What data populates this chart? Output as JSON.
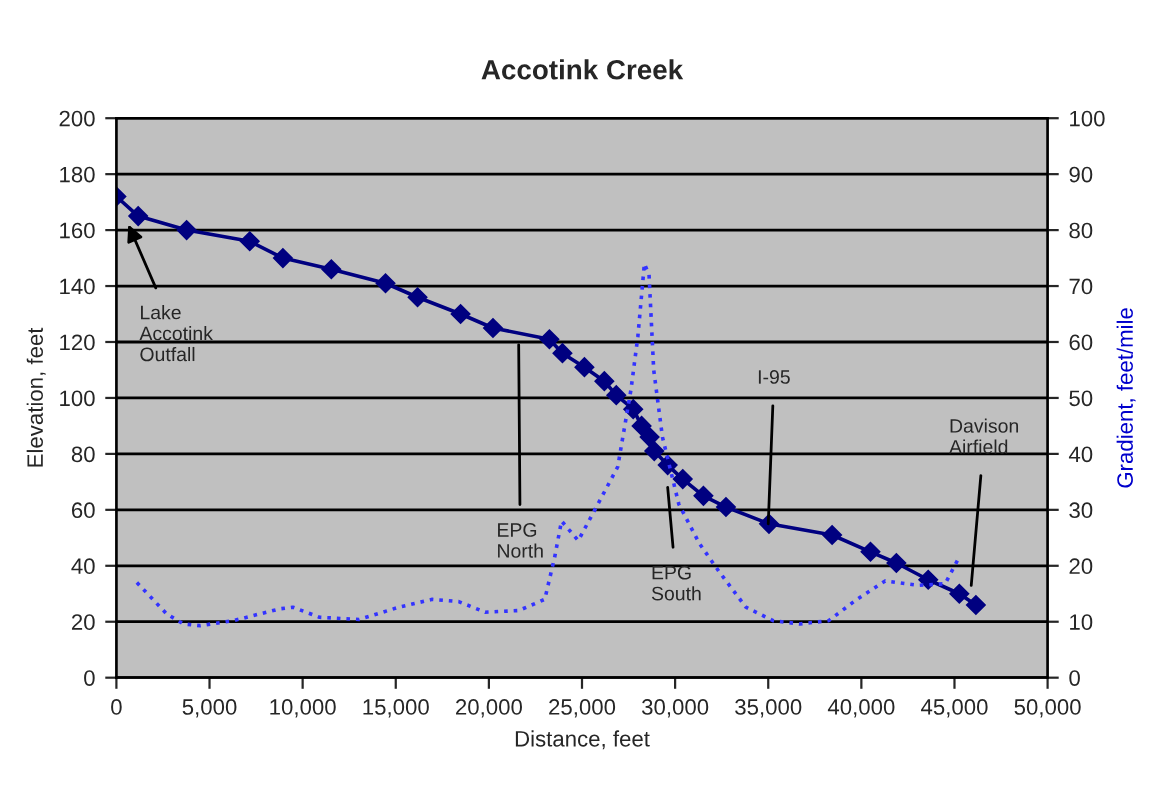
{
  "chart_data": {
    "type": "line",
    "title": "Accotink Creek",
    "xlabel": "Distance, feet",
    "ylabel": "Elevation, feet",
    "y2label": "Gradient, feet/mile",
    "series": [
      {
        "color": "#000080",
        "marker": "diamond",
        "line_style": "solid",
        "x": [
          0,
          1170,
          3770,
          7160,
          8940,
          11540,
          14450,
          16170,
          18480,
          20220,
          23250,
          23950,
          25130,
          26200,
          26840,
          27750,
          28200,
          28630,
          28880,
          29600,
          30410,
          31520,
          32730,
          35040,
          38430,
          40490,
          41880,
          43590,
          45260,
          46150
        ],
        "values": [
          172,
          165,
          160,
          156,
          150,
          146,
          141,
          136,
          130,
          125,
          121,
          116,
          111,
          106,
          101,
          96,
          90,
          86,
          81,
          76,
          71,
          65,
          61,
          55,
          51,
          45,
          41,
          35,
          30,
          26
        ]
      },
      {
        "color": "#3333ff",
        "marker": "none",
        "line_style": "dotted",
        "axis": "y2",
        "x": [
          1100,
          2700,
          3600,
          4500,
          6290,
          8760,
          9470,
          10900,
          13030,
          15170,
          16960,
          18380,
          19800,
          21600,
          23000,
          23530,
          23900,
          24800,
          25850,
          26920,
          27630,
          28000,
          28350,
          28600,
          28850,
          29320,
          30200,
          31300,
          32350,
          33800,
          35260,
          36700,
          38250,
          39680,
          41280,
          43080,
          44500,
          45200
        ],
        "values": [
          17,
          11.4,
          9.6,
          9.3,
          10.2,
          12.3,
          12.6,
          10.8,
          10.4,
          12.6,
          14,
          13.6,
          11.7,
          12,
          14,
          21.5,
          28,
          24.5,
          31,
          37.7,
          51.5,
          61,
          74,
          72,
          55,
          43,
          31,
          24,
          19,
          12.6,
          10.2,
          9.6,
          10.2,
          13.8,
          17.3,
          16.5,
          16.8,
          21.2
        ]
      }
    ],
    "xlim": [
      0,
      50000
    ],
    "xticks": [
      {
        "value": 0,
        "label": "0"
      },
      {
        "value": 5000,
        "label": "5,000"
      },
      {
        "value": 10000,
        "label": "10,000"
      },
      {
        "value": 15000,
        "label": "15,000"
      },
      {
        "value": 20000,
        "label": "20,000"
      },
      {
        "value": 25000,
        "label": "25,000"
      },
      {
        "value": 30000,
        "label": "30,000"
      },
      {
        "value": 35000,
        "label": "35,000"
      },
      {
        "value": 40000,
        "label": "40,000"
      },
      {
        "value": 45000,
        "label": "45,000"
      },
      {
        "value": 50000,
        "label": "50,000"
      }
    ],
    "ylim": [
      0,
      200
    ],
    "yticks": [
      0,
      20,
      40,
      60,
      80,
      100,
      120,
      140,
      160,
      180,
      200
    ],
    "y2lim": [
      0,
      100
    ],
    "y2ticks": [
      0,
      10,
      20,
      30,
      40,
      50,
      60,
      70,
      80,
      90,
      100
    ],
    "grid": "y",
    "legend": false,
    "annotations": [
      {
        "text": "Lake\nAccotink\nOutfall",
        "x": 640,
        "y": 162
      },
      {
        "text": "EPG\nNorth",
        "x": 21600,
        "y": 119
      },
      {
        "text": "EPG\nSouth",
        "x": 29600,
        "y": 68
      },
      {
        "text": "I-95",
        "x": 35000,
        "y": 55
      },
      {
        "text": "Davison\nAirfield",
        "x": 45900,
        "y": 33
      }
    ]
  }
}
